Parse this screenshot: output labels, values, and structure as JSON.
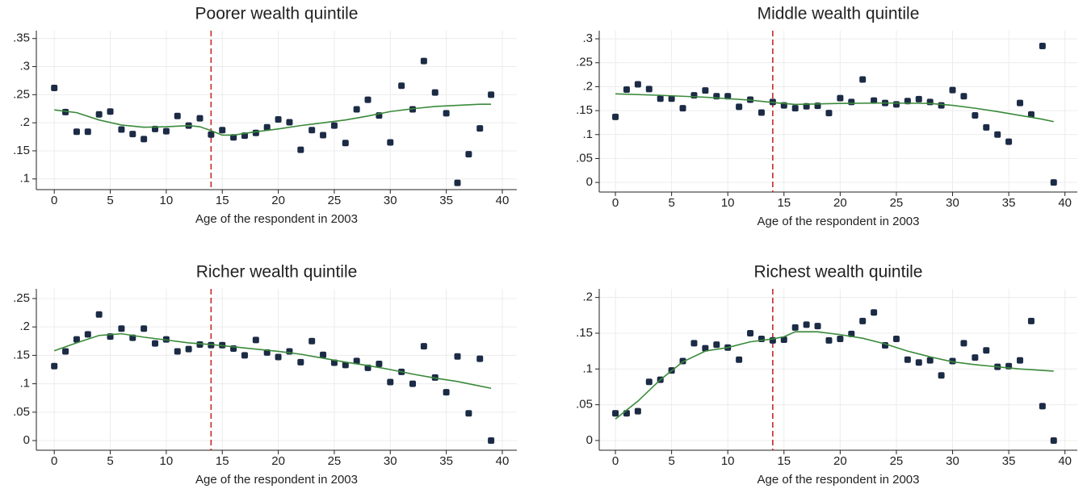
{
  "chart_data": [
    {
      "type": "scatter",
      "title": "Poorer wealth quintile",
      "xlabel": "Age of the respondent in 2003",
      "x": [
        0,
        1,
        2,
        3,
        4,
        5,
        6,
        7,
        8,
        9,
        10,
        11,
        12,
        13,
        14,
        15,
        16,
        17,
        18,
        19,
        20,
        21,
        22,
        23,
        24,
        25,
        26,
        27,
        28,
        29,
        30,
        31,
        32,
        33,
        34,
        35,
        36,
        37,
        38,
        39
      ],
      "series": [
        {
          "type": "scatter",
          "color": "#1c2b45",
          "values": [
            0.262,
            0.219,
            0.184,
            0.184,
            0.215,
            0.22,
            0.188,
            0.18,
            0.171,
            0.189,
            0.185,
            0.212,
            0.195,
            0.208,
            0.179,
            0.187,
            0.174,
            0.177,
            0.182,
            0.192,
            0.206,
            0.201,
            0.152,
            0.187,
            0.178,
            0.195,
            0.164,
            0.224,
            0.241,
            0.213,
            0.165,
            0.266,
            0.224,
            0.31,
            0.254,
            0.217,
            0.093,
            0.144,
            0.19,
            0.25
          ]
        },
        {
          "type": "line",
          "color": "#3a8a3a",
          "x": [
            0,
            2,
            4,
            6,
            8,
            10,
            12,
            13,
            14,
            15,
            16,
            18,
            20,
            22,
            24,
            26,
            28,
            30,
            32,
            34,
            36,
            38,
            39
          ],
          "values": [
            0.223,
            0.218,
            0.205,
            0.196,
            0.192,
            0.193,
            0.195,
            0.193,
            0.186,
            0.178,
            0.178,
            0.184,
            0.189,
            0.195,
            0.2,
            0.205,
            0.212,
            0.22,
            0.225,
            0.229,
            0.231,
            0.233,
            0.233
          ]
        }
      ],
      "vline": {
        "value": 14,
        "color": "#c62828"
      },
      "xlim": [
        -1.6,
        41.3
      ],
      "xticks": [
        0,
        5,
        10,
        15,
        20,
        25,
        30,
        35,
        40
      ],
      "ylim": [
        0.081,
        0.364
      ],
      "yticks": [
        {
          "value": 0.1,
          "label": ".1"
        },
        {
          "value": 0.15,
          "label": ".15"
        },
        {
          "value": 0.2,
          "label": ".2"
        },
        {
          "value": 0.25,
          "label": ".25"
        },
        {
          "value": 0.3,
          "label": ".3"
        },
        {
          "value": 0.35,
          "label": ".35"
        }
      ],
      "grid": true
    },
    {
      "type": "scatter",
      "title": "Middle wealth quintile",
      "xlabel": "Age of the respondent in 2003",
      "x": [
        0,
        1,
        2,
        3,
        4,
        5,
        6,
        7,
        8,
        9,
        10,
        11,
        12,
        13,
        14,
        15,
        16,
        17,
        18,
        19,
        20,
        21,
        22,
        23,
        24,
        25,
        26,
        27,
        28,
        29,
        30,
        31,
        32,
        33,
        34,
        35,
        36,
        37,
        38,
        39
      ],
      "series": [
        {
          "type": "scatter",
          "color": "#1c2b45",
          "values": [
            0.137,
            0.194,
            0.205,
            0.195,
            0.175,
            0.175,
            0.155,
            0.182,
            0.192,
            0.18,
            0.18,
            0.158,
            0.173,
            0.146,
            0.168,
            0.161,
            0.155,
            0.159,
            0.16,
            0.145,
            0.176,
            0.168,
            0.215,
            0.171,
            0.166,
            0.163,
            0.17,
            0.174,
            0.168,
            0.161,
            0.193,
            0.18,
            0.14,
            0.115,
            0.1,
            0.085,
            0.166,
            0.142,
            0.285,
            0
          ]
        },
        {
          "type": "line",
          "color": "#3a8a3a",
          "x": [
            0,
            4,
            8,
            12,
            14,
            16,
            20,
            24,
            28,
            30,
            32,
            34,
            36,
            38,
            39
          ],
          "values": [
            0.185,
            0.182,
            0.178,
            0.172,
            0.167,
            0.163,
            0.165,
            0.166,
            0.165,
            0.161,
            0.155,
            0.148,
            0.14,
            0.132,
            0.127
          ]
        }
      ],
      "vline": {
        "value": 14,
        "color": "#c62828"
      },
      "xlim": [
        -1.44,
        41.1
      ],
      "xticks": [
        0,
        5,
        10,
        15,
        20,
        25,
        30,
        35,
        40
      ],
      "ylim": [
        -0.02,
        0.317
      ],
      "yticks": [
        0,
        {
          "value": 0.05,
          "label": ".05"
        },
        {
          "value": 0.1,
          "label": ".1"
        },
        {
          "value": 0.15,
          "label": ".15"
        },
        {
          "value": 0.2,
          "label": ".2"
        },
        {
          "value": 0.25,
          "label": ".25"
        },
        {
          "value": 0.3,
          "label": ".3"
        }
      ],
      "grid": true
    },
    {
      "type": "scatter",
      "title": "Richer wealth quintile",
      "xlabel": "Age of the respondent in 2003",
      "x": [
        0,
        1,
        2,
        3,
        4,
        5,
        6,
        7,
        8,
        9,
        10,
        11,
        12,
        13,
        14,
        15,
        16,
        17,
        18,
        19,
        20,
        21,
        22,
        23,
        24,
        25,
        26,
        27,
        28,
        29,
        30,
        31,
        32,
        33,
        34,
        35,
        36,
        37,
        38,
        39
      ],
      "series": [
        {
          "type": "scatter",
          "color": "#1c2b45",
          "values": [
            0.131,
            0.157,
            0.178,
            0.187,
            0.222,
            0.183,
            0.197,
            0.181,
            0.197,
            0.171,
            0.178,
            0.157,
            0.161,
            0.169,
            0.168,
            0.168,
            0.162,
            0.15,
            0.177,
            0.155,
            0.147,
            0.157,
            0.138,
            0.175,
            0.151,
            0.137,
            0.133,
            0.14,
            0.128,
            0.135,
            0.103,
            0.121,
            0.1,
            0.166,
            0.111,
            0.085,
            0.148,
            0.048,
            0.144,
            0
          ]
        },
        {
          "type": "line",
          "color": "#3a8a3a",
          "x": [
            0,
            2,
            4,
            6,
            8,
            10,
            12,
            14,
            16,
            18,
            20,
            22,
            24,
            26,
            28,
            30,
            32,
            34,
            36,
            38,
            39
          ],
          "values": [
            0.158,
            0.172,
            0.185,
            0.188,
            0.182,
            0.177,
            0.172,
            0.169,
            0.165,
            0.161,
            0.157,
            0.152,
            0.145,
            0.138,
            0.132,
            0.125,
            0.117,
            0.11,
            0.104,
            0.096,
            0.092
          ]
        }
      ],
      "vline": {
        "value": 14,
        "color": "#c62828"
      },
      "xlim": [
        -1.6,
        41.3
      ],
      "xticks": [
        0,
        5,
        10,
        15,
        20,
        25,
        30,
        35,
        40
      ],
      "ylim": [
        -0.017,
        0.267
      ],
      "yticks": [
        0,
        {
          "value": 0.05,
          "label": ".05"
        },
        {
          "value": 0.1,
          "label": ".1"
        },
        {
          "value": 0.15,
          "label": ".15"
        },
        {
          "value": 0.2,
          "label": ".2"
        },
        {
          "value": 0.25,
          "label": ".25"
        }
      ],
      "grid": true
    },
    {
      "type": "scatter",
      "title": "Richest wealth quintile",
      "xlabel": "Age of the respondent in 2003",
      "x": [
        0,
        1,
        2,
        3,
        4,
        5,
        6,
        7,
        8,
        9,
        10,
        11,
        12,
        13,
        14,
        15,
        16,
        17,
        18,
        19,
        20,
        21,
        22,
        23,
        24,
        25,
        26,
        27,
        28,
        29,
        30,
        31,
        32,
        33,
        34,
        35,
        36,
        37,
        38,
        39
      ],
      "series": [
        {
          "type": "scatter",
          "color": "#1c2b45",
          "values": [
            0.038,
            0.038,
            0.041,
            0.082,
            0.085,
            0.098,
            0.111,
            0.136,
            0.129,
            0.134,
            0.13,
            0.113,
            0.15,
            0.142,
            0.14,
            0.141,
            0.158,
            0.162,
            0.16,
            0.14,
            0.142,
            0.149,
            0.167,
            0.179,
            0.133,
            0.142,
            0.113,
            0.109,
            0.112,
            0.091,
            0.111,
            0.136,
            0.116,
            0.126,
            0.103,
            0.104,
            0.112,
            0.167,
            0.048,
            0
          ]
        },
        {
          "type": "line",
          "color": "#3a8a3a",
          "x": [
            0,
            2,
            4,
            6,
            8,
            10,
            12,
            14,
            15,
            16,
            18,
            20,
            22,
            24,
            26,
            28,
            30,
            32,
            34,
            36,
            38,
            39
          ],
          "values": [
            0.03,
            0.055,
            0.085,
            0.11,
            0.125,
            0.13,
            0.138,
            0.142,
            0.145,
            0.152,
            0.152,
            0.148,
            0.143,
            0.135,
            0.125,
            0.117,
            0.11,
            0.106,
            0.103,
            0.1,
            0.098,
            0.097
          ]
        }
      ],
      "vline": {
        "value": 14,
        "color": "#c62828"
      },
      "xlim": [
        -1.44,
        41.1
      ],
      "xticks": [
        0,
        5,
        10,
        15,
        20,
        25,
        30,
        35,
        40
      ],
      "ylim": [
        -0.0136,
        0.212
      ],
      "yticks": [
        0,
        {
          "value": 0.05,
          "label": ".05"
        },
        {
          "value": 0.1,
          "label": ".1"
        },
        {
          "value": 0.15,
          "label": ".15"
        },
        {
          "value": 0.2,
          "label": ".2"
        }
      ],
      "grid": true
    }
  ]
}
